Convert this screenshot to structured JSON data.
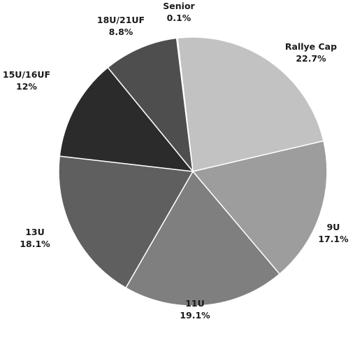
{
  "chart_data": {
    "type": "pie",
    "title": "",
    "unit": "%",
    "slices": [
      {
        "label": "Rallye Cap",
        "value": 22.7,
        "value_text": "22.7%",
        "color": "#c2c2c2"
      },
      {
        "label": "9U",
        "value": 17.1,
        "value_text": "17.1%",
        "color": "#9d9d9d"
      },
      {
        "label": "11U",
        "value": 19.1,
        "value_text": "19.1%",
        "color": "#7f7f7f"
      },
      {
        "label": "13U",
        "value": 18.1,
        "value_text": "18.1%",
        "color": "#5f5f5f"
      },
      {
        "label": "15U/16UF",
        "value": 12,
        "value_text": "12%",
        "color": "#2b2b2b"
      },
      {
        "label": "18U/21UF",
        "value": 8.8,
        "value_text": "8.8%",
        "color": "#4e4e4e"
      },
      {
        "label": "Senior",
        "value": 0.1,
        "value_text": "0.1%",
        "color": "#6c6c6c"
      }
    ]
  }
}
